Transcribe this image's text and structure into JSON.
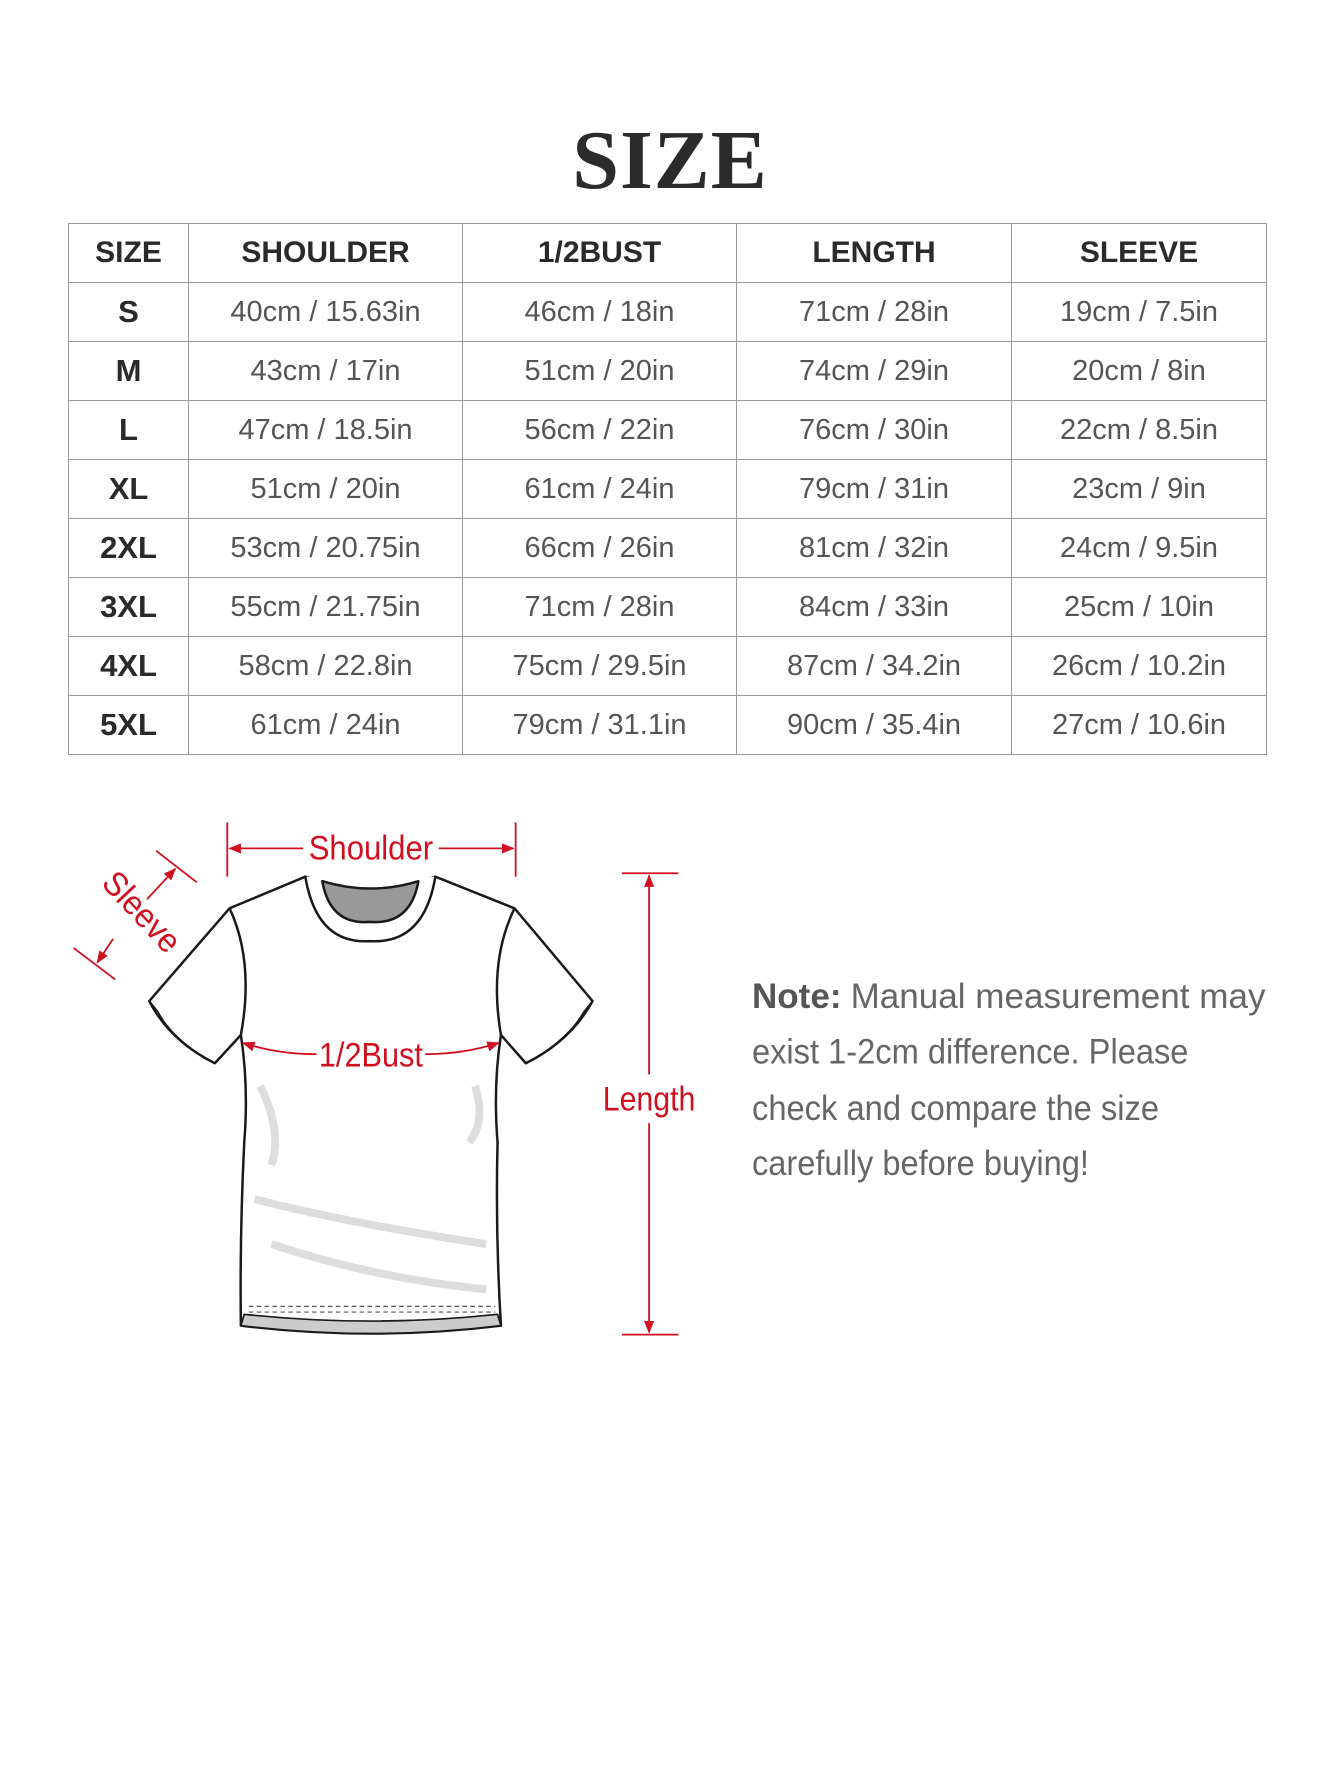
{
  "title": "SIZE",
  "table": {
    "headers": [
      "SIZE",
      "SHOULDER",
      "1/2BUST",
      "LENGTH",
      "SLEEVE"
    ],
    "rows": [
      [
        "S",
        "40cm / 15.63in",
        "46cm / 18in",
        "71cm / 28in",
        "19cm / 7.5in"
      ],
      [
        "M",
        "43cm / 17in",
        "51cm / 20in",
        "74cm / 29in",
        "20cm / 8in"
      ],
      [
        "L",
        "47cm / 18.5in",
        "56cm / 22in",
        "76cm / 30in",
        "22cm / 8.5in"
      ],
      [
        "XL",
        "51cm / 20in",
        "61cm / 24in",
        "79cm / 31in",
        "23cm / 9in"
      ],
      [
        "2XL",
        "53cm / 20.75in",
        "66cm / 26in",
        "81cm / 32in",
        "24cm / 9.5in"
      ],
      [
        "3XL",
        "55cm / 21.75in",
        "71cm / 28in",
        "84cm / 33in",
        "25cm / 10in"
      ],
      [
        "4XL",
        "58cm / 22.8in",
        "75cm / 29.5in",
        "87cm / 34.2in",
        "26cm / 10.2in"
      ],
      [
        "5XL",
        "61cm / 24in",
        "79cm / 31.1in",
        "90cm / 35.4in",
        "27cm / 10.6in"
      ]
    ]
  },
  "diagram": {
    "labels": {
      "shoulder": "Shoulder",
      "sleeve": "Sleeve",
      "bust": "1/2Bust",
      "length": "Length"
    },
    "accent_color": "#d0101f"
  },
  "note": {
    "label": "Note:",
    "lines": [
      "Manual measurement may",
      "exist 1-2cm difference. Please",
      "check and compare the size",
      "carefully before buying!"
    ]
  }
}
